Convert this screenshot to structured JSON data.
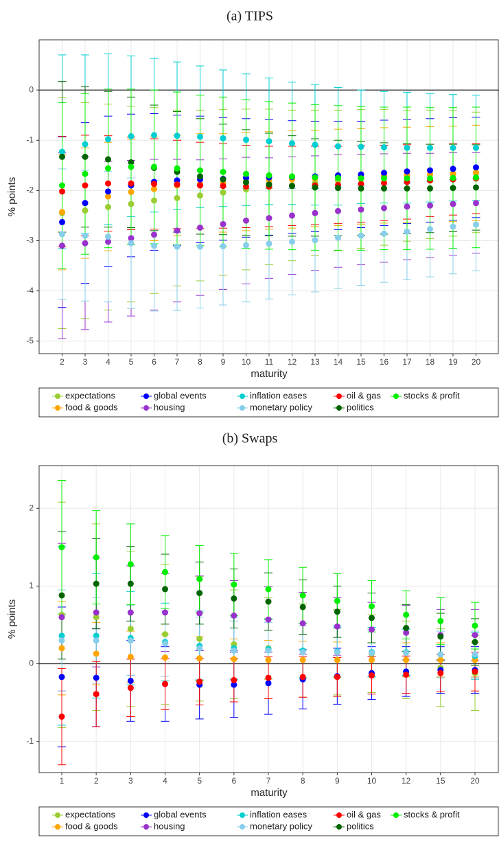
{
  "chart_data": [
    {
      "type": "errorbar",
      "title": "(a) TIPS",
      "x_label": "maturity",
      "y_label": "% points",
      "x": [
        2,
        3,
        4,
        5,
        6,
        7,
        8,
        9,
        10,
        11,
        12,
        13,
        14,
        15,
        16,
        17,
        18,
        19,
        20
      ],
      "xlim": [
        1,
        21
      ],
      "xticks": [
        2,
        3,
        4,
        5,
        6,
        7,
        8,
        9,
        10,
        11,
        12,
        13,
        14,
        15,
        16,
        17,
        18,
        19,
        20
      ],
      "ylim": [
        -5.25,
        1.0
      ],
      "yticks": [
        -5,
        -4,
        -3,
        -2,
        -1,
        0
      ],
      "grid": true,
      "series": [
        {
          "name": "expectations",
          "color": "#9acd32",
          "values": [
            -2.45,
            -2.4,
            -2.33,
            -2.27,
            -2.2,
            -2.15,
            -2.1,
            -2.04,
            -1.98,
            -1.93,
            -1.9,
            -1.85,
            -1.8,
            -1.77,
            -1.74,
            -1.71,
            -1.68,
            -1.66,
            -1.64
          ],
          "errors": [
            2.3,
            2.15,
            2.05,
            1.95,
            1.85,
            1.75,
            1.7,
            1.65,
            1.6,
            1.55,
            1.5,
            1.45,
            1.4,
            1.38,
            1.35,
            1.3,
            1.28,
            1.25,
            1.2
          ]
        },
        {
          "name": "food & goods",
          "color": "#ffa500",
          "values": [
            -2.43,
            -2.25,
            -2.12,
            -2.03,
            -1.97,
            -1.9,
            -1.87,
            -1.85,
            -1.82,
            -1.8,
            -1.78,
            -1.76,
            -1.74,
            -1.72,
            -1.7,
            -1.69,
            -1.68,
            -1.67,
            -1.65
          ],
          "errors": [
            1.15,
            1.1,
            1.08,
            1.05,
            1.03,
            1.0,
            1.0,
            0.98,
            0.98,
            0.97,
            0.97,
            0.96,
            0.96,
            0.95,
            0.95,
            0.95,
            0.95,
            0.95,
            0.95
          ]
        },
        {
          "name": "global events",
          "color": "#0000ff",
          "values": [
            -2.63,
            -2.25,
            -2.02,
            -1.9,
            -1.83,
            -1.8,
            -1.78,
            -1.77,
            -1.75,
            -1.74,
            -1.73,
            -1.72,
            -1.7,
            -1.68,
            -1.65,
            -1.62,
            -1.6,
            -1.57,
            -1.54
          ],
          "errors": [
            1.7,
            1.6,
            1.5,
            1.42,
            1.36,
            1.3,
            1.26,
            1.22,
            1.18,
            1.15,
            1.12,
            1.1,
            1.08,
            1.06,
            1.05,
            1.04,
            1.03,
            1.02,
            1.0
          ]
        },
        {
          "name": "housing",
          "color": "#9932cc",
          "values": [
            -3.1,
            -3.05,
            -3.02,
            -2.95,
            -2.88,
            -2.8,
            -2.74,
            -2.67,
            -2.6,
            -2.55,
            -2.5,
            -2.45,
            -2.41,
            -2.38,
            -2.35,
            -2.32,
            -2.3,
            -2.27,
            -2.25
          ],
          "errors": [
            1.85,
            1.72,
            1.6,
            1.55,
            1.5,
            1.42,
            1.35,
            1.3,
            1.26,
            1.2,
            1.17,
            1.14,
            1.12,
            1.1,
            1.08,
            1.06,
            1.04,
            1.02,
            1.0
          ]
        },
        {
          "name": "inflation eases",
          "color": "#00ced1",
          "values": [
            -1.23,
            -1.08,
            -0.98,
            -0.92,
            -0.9,
            -0.91,
            -0.93,
            -0.96,
            -0.99,
            -1.02,
            -1.06,
            -1.09,
            -1.12,
            -1.13,
            -1.14,
            -1.15,
            -1.15,
            -1.15,
            -1.15
          ],
          "errors": [
            1.93,
            1.78,
            1.7,
            1.6,
            1.53,
            1.47,
            1.41,
            1.36,
            1.31,
            1.26,
            1.22,
            1.2,
            1.17,
            1.13,
            1.11,
            1.1,
            1.08,
            1.06,
            1.05
          ]
        },
        {
          "name": "monetary policy",
          "color": "#87ceeb",
          "values": [
            -2.87,
            -2.9,
            -2.92,
            -3.05,
            -3.1,
            -3.12,
            -3.12,
            -3.11,
            -3.09,
            -3.06,
            -3.02,
            -2.99,
            -2.94,
            -2.9,
            -2.86,
            -2.82,
            -2.77,
            -2.72,
            -2.68
          ],
          "errors": [
            1.3,
            1.3,
            1.3,
            1.3,
            1.3,
            1.27,
            1.22,
            1.17,
            1.13,
            1.1,
            1.06,
            1.03,
            1.01,
            0.99,
            0.97,
            0.96,
            0.95,
            0.94,
            0.92
          ]
        },
        {
          "name": "oil & gas",
          "color": "#ff0000",
          "values": [
            -2.02,
            -1.9,
            -1.86,
            -1.86,
            -1.87,
            -1.88,
            -1.9,
            -1.91,
            -1.92,
            -1.92,
            -1.91,
            -1.9,
            -1.89,
            -1.87,
            -1.85,
            -1.83,
            -1.8,
            -1.78,
            -1.76
          ],
          "errors": [
            1.1,
            1.0,
            0.95,
            0.92,
            0.9,
            0.88,
            0.86,
            0.84,
            0.82,
            0.8,
            0.79,
            0.78,
            0.77,
            0.76,
            0.75,
            0.74,
            0.72,
            0.71,
            0.7
          ]
        },
        {
          "name": "politics",
          "color": "#006400",
          "values": [
            -1.33,
            -1.33,
            -1.38,
            -1.44,
            -1.55,
            -1.63,
            -1.72,
            -1.78,
            -1.84,
            -1.88,
            -1.91,
            -1.94,
            -1.95,
            -1.96,
            -1.96,
            -1.96,
            -1.96,
            -1.95,
            -1.94
          ],
          "errors": [
            1.5,
            1.4,
            1.35,
            1.3,
            1.25,
            1.2,
            1.15,
            1.1,
            1.05,
            1.02,
            1.0,
            0.97,
            0.95,
            0.93,
            0.91,
            0.9,
            0.88,
            0.87,
            0.85
          ]
        },
        {
          "name": "stocks & profit",
          "color": "#00ee00",
          "values": [
            -1.9,
            -1.67,
            -1.56,
            -1.53,
            -1.53,
            -1.56,
            -1.6,
            -1.63,
            -1.67,
            -1.7,
            -1.72,
            -1.74,
            -1.75,
            -1.76,
            -1.76,
            -1.76,
            -1.76,
            -1.75,
            -1.74
          ],
          "errors": [
            1.65,
            1.6,
            1.58,
            1.55,
            1.53,
            1.52,
            1.5,
            1.49,
            1.48,
            1.47,
            1.46,
            1.45,
            1.44,
            1.43,
            1.42,
            1.42,
            1.41,
            1.4,
            1.4
          ]
        }
      ]
    },
    {
      "type": "errorbar",
      "title": "(b) Swaps",
      "x_label": "maturity",
      "y_label": "% points",
      "categories": [
        "1",
        "2",
        "3",
        "4",
        "5",
        "6",
        "7",
        "8",
        "9",
        "10",
        "12",
        "15",
        "20"
      ],
      "ylim": [
        -1.4,
        2.55
      ],
      "yticks": [
        -1,
        0,
        1,
        2
      ],
      "grid": true,
      "series": [
        {
          "name": "expectations",
          "color": "#9acd32",
          "values": [
            0.63,
            0.6,
            0.45,
            0.38,
            0.32,
            0.25,
            0.2,
            0.17,
            0.15,
            0.13,
            0.05,
            -0.05,
            -0.12
          ],
          "errors": [
            1.45,
            1.2,
            1.0,
            0.9,
            0.8,
            0.7,
            0.65,
            0.6,
            0.55,
            0.5,
            0.5,
            0.5,
            0.48
          ]
        },
        {
          "name": "food & goods",
          "color": "#ffa500",
          "values": [
            0.2,
            0.13,
            0.09,
            0.08,
            0.07,
            0.06,
            0.05,
            0.05,
            0.05,
            0.05,
            0.05,
            0.05,
            0.05
          ],
          "errors": [
            0.6,
            0.4,
            0.33,
            0.3,
            0.28,
            0.26,
            0.25,
            0.24,
            0.23,
            0.22,
            0.22,
            0.22,
            0.22
          ]
        },
        {
          "name": "global events",
          "color": "#0000ff",
          "values": [
            -0.17,
            -0.18,
            -0.22,
            -0.26,
            -0.27,
            -0.27,
            -0.25,
            -0.2,
            -0.16,
            -0.12,
            -0.1,
            -0.08,
            -0.08
          ],
          "errors": [
            0.9,
            0.63,
            0.52,
            0.48,
            0.44,
            0.42,
            0.4,
            0.38,
            0.36,
            0.34,
            0.32,
            0.3,
            0.3
          ]
        },
        {
          "name": "housing",
          "color": "#9932cc",
          "values": [
            0.6,
            0.66,
            0.66,
            0.66,
            0.65,
            0.62,
            0.57,
            0.52,
            0.48,
            0.44,
            0.4,
            0.37,
            0.37
          ],
          "errors": [
            0.95,
            0.7,
            0.6,
            0.5,
            0.48,
            0.45,
            0.42,
            0.4,
            0.37,
            0.35,
            0.35,
            0.33,
            0.33
          ]
        },
        {
          "name": "inflation eases",
          "color": "#00ced1",
          "values": [
            0.36,
            0.36,
            0.33,
            0.28,
            0.23,
            0.2,
            0.19,
            0.17,
            0.16,
            0.15,
            0.15,
            0.12,
            0.1
          ],
          "errors": [
            1.15,
            0.8,
            0.6,
            0.5,
            0.45,
            0.4,
            0.38,
            0.35,
            0.33,
            0.32,
            0.3,
            0.3,
            0.3
          ]
        },
        {
          "name": "monetary policy",
          "color": "#87ceeb",
          "values": [
            0.3,
            0.3,
            0.3,
            0.26,
            0.2,
            0.17,
            0.17,
            0.15,
            0.15,
            0.14,
            0.14,
            0.12,
            0.12
          ],
          "errors": [
            0.65,
            0.55,
            0.45,
            0.42,
            0.4,
            0.38,
            0.36,
            0.34,
            0.32,
            0.3,
            0.3,
            0.3,
            0.3
          ]
        },
        {
          "name": "oil & gas",
          "color": "#ff0000",
          "values": [
            -0.68,
            -0.39,
            -0.31,
            -0.26,
            -0.23,
            -0.21,
            -0.18,
            -0.17,
            -0.17,
            -0.15,
            -0.14,
            -0.12,
            -0.1
          ],
          "errors": [
            0.62,
            0.42,
            0.37,
            0.33,
            0.3,
            0.28,
            0.27,
            0.26,
            0.25,
            0.24,
            0.24,
            0.24,
            0.25
          ]
        },
        {
          "name": "politics",
          "color": "#006400",
          "values": [
            0.88,
            1.03,
            1.03,
            0.96,
            0.91,
            0.84,
            0.8,
            0.73,
            0.67,
            0.59,
            0.46,
            0.35,
            0.28
          ],
          "errors": [
            0.82,
            0.58,
            0.48,
            0.45,
            0.4,
            0.38,
            0.37,
            0.35,
            0.33,
            0.32,
            0.3,
            0.3,
            0.3
          ]
        },
        {
          "name": "stocks & profit",
          "color": "#00ee00",
          "values": [
            1.5,
            1.37,
            1.28,
            1.18,
            1.09,
            1.02,
            0.96,
            0.88,
            0.81,
            0.74,
            0.63,
            0.55,
            0.49
          ],
          "errors": [
            0.86,
            0.6,
            0.52,
            0.47,
            0.43,
            0.4,
            0.38,
            0.36,
            0.35,
            0.33,
            0.31,
            0.3,
            0.3
          ]
        }
      ]
    }
  ]
}
